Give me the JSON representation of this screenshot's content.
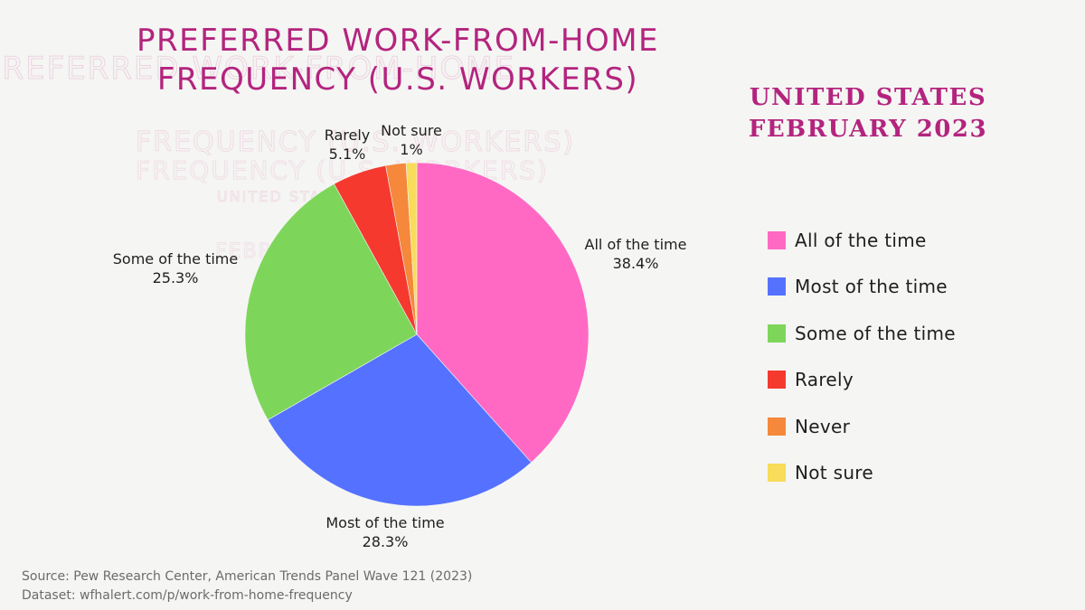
{
  "chart_data": {
    "type": "pie",
    "title": "PREFERRED WORK-FROM-HOME FREQUENCY (U.S. WORKERS)",
    "subtitle_lines": [
      "UNITED STATES",
      "FEBRUARY 2023"
    ],
    "slices": [
      {
        "name": "All of the time",
        "value": 38.4,
        "display": "38.4%",
        "color": "#ff69c4"
      },
      {
        "name": "Most of the time",
        "value": 28.3,
        "display": "28.3%",
        "color": "#5472ff"
      },
      {
        "name": "Some of the time",
        "value": 25.3,
        "display": "25.3%",
        "color": "#7dd65a"
      },
      {
        "name": "Rarely",
        "value": 5.1,
        "display": "5.1%",
        "color": "#f5392f"
      },
      {
        "name": "Never",
        "value": 1.9,
        "color": "#f5883b"
      },
      {
        "name": "Not sure",
        "value": 1,
        "display": "1%",
        "color": "#f8dc5a"
      }
    ],
    "legend": [
      "All of the time",
      "Most of the time",
      "Some of the time",
      "Rarely",
      "Never",
      "Not sure"
    ],
    "legend_position": "right"
  },
  "title_lines": [
    "PREFERRED WORK-FROM-HOME",
    "FREQUENCY (U.S. WORKERS)"
  ],
  "source": {
    "line1": "Source: Pew Research Center, American Trends Panel Wave 121 (2023)",
    "line2": "Dataset: wfhalert.com/p/work-from-home-frequency"
  }
}
